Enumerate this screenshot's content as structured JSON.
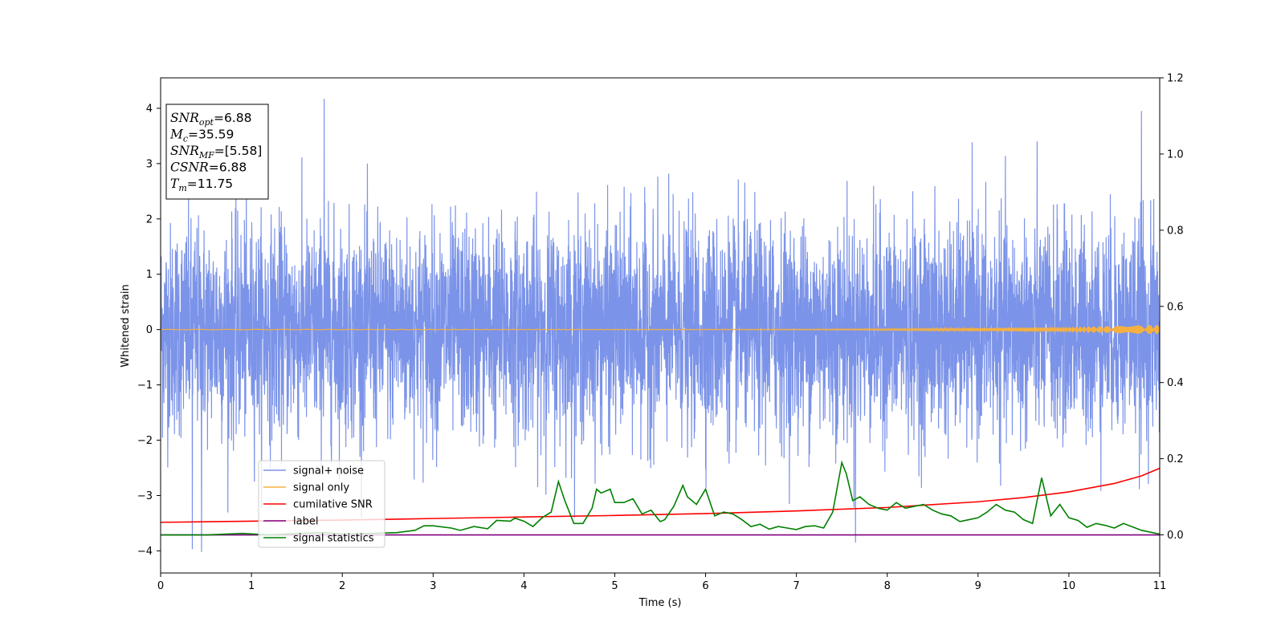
{
  "chart_data": {
    "type": "line",
    "xlabel": "Time (s)",
    "ylabel": "Whitened strain",
    "xlim": [
      0,
      11
    ],
    "ylim_left": [
      -4.4,
      4.55
    ],
    "ylim_right": [
      -0.1,
      1.2
    ],
    "x_ticks": [
      0,
      1,
      2,
      3,
      4,
      5,
      6,
      7,
      8,
      9,
      10,
      11
    ],
    "y_ticks_left": [
      -4,
      -3,
      -2,
      -1,
      0,
      1,
      2,
      3,
      4
    ],
    "y_ticks_right": [
      0.0,
      0.2,
      0.4,
      0.6,
      0.8,
      1.0,
      1.2
    ],
    "grid": false,
    "legend_position": "lower-left",
    "annotation_box": {
      "position": "top-left",
      "lines": [
        {
          "math": "SNR",
          "sub": "opt",
          "value": "=6.88"
        },
        {
          "math": "M",
          "sub": "c",
          "value": "=35.59"
        },
        {
          "math": "SNR",
          "sub": "MF",
          "value": "=[5.58]"
        },
        {
          "math": "CSNR",
          "sub": "",
          "value": "=6.88"
        },
        {
          "math": "T",
          "sub": "m",
          "value": "=11.75"
        }
      ]
    },
    "series": [
      {
        "name": "signal+ noise",
        "axis": "left",
        "color": "#7b93e8",
        "description_of_values": "noise band, roughly between -2.6 and 2.6 with spikes reaching about 4.2 and -4.0",
        "typical_range": [
          -2.6,
          2.6
        ],
        "peaks": [
          {
            "x": 1.8,
            "y": 4.17
          },
          {
            "x": 10.8,
            "y": 3.95
          },
          {
            "x": 0.45,
            "y": -4.02
          },
          {
            "x": 0.35,
            "y": -3.97
          },
          {
            "x": 7.65,
            "y": -3.85
          }
        ]
      },
      {
        "name": "signal only",
        "axis": "left",
        "color": "#f5b041",
        "description_of_values": "chirp near zero, amplitude growing to about 0.08 near t=11",
        "amplitude_end": 0.08
      },
      {
        "name": "cumilative SNR",
        "axis": "right",
        "color": "#ff0000",
        "x": [
          0,
          1,
          2,
          3,
          4,
          5,
          6,
          7,
          8,
          9,
          9.5,
          10,
          10.5,
          10.8,
          11
        ],
        "values": [
          0.033,
          0.036,
          0.039,
          0.043,
          0.047,
          0.051,
          0.056,
          0.063,
          0.072,
          0.087,
          0.098,
          0.113,
          0.135,
          0.155,
          0.175
        ]
      },
      {
        "name": "label",
        "axis": "right",
        "color": "#800080",
        "x": [
          0,
          11
        ],
        "values": [
          0.0,
          0.0
        ]
      },
      {
        "name": "signal statistics",
        "axis": "right",
        "color": "#008000",
        "x": [
          0,
          0.5,
          0.9,
          1.2,
          1.5,
          1.8,
          2.0,
          2.3,
          2.6,
          2.8,
          2.9,
          3.0,
          3.2,
          3.3,
          3.45,
          3.6,
          3.7,
          3.85,
          3.9,
          4.0,
          4.1,
          4.2,
          4.3,
          4.38,
          4.45,
          4.55,
          4.65,
          4.75,
          4.8,
          4.85,
          4.95,
          5.0,
          5.1,
          5.2,
          5.3,
          5.4,
          5.5,
          5.55,
          5.65,
          5.75,
          5.8,
          5.9,
          6.0,
          6.1,
          6.2,
          6.3,
          6.4,
          6.5,
          6.6,
          6.7,
          6.8,
          6.9,
          7.0,
          7.1,
          7.2,
          7.3,
          7.4,
          7.5,
          7.55,
          7.62,
          7.7,
          7.8,
          7.9,
          8.0,
          8.1,
          8.2,
          8.3,
          8.4,
          8.5,
          8.6,
          8.7,
          8.8,
          8.9,
          9.0,
          9.1,
          9.2,
          9.3,
          9.4,
          9.5,
          9.6,
          9.7,
          9.8,
          9.9,
          10.0,
          10.1,
          10.2,
          10.3,
          10.4,
          10.5,
          10.6,
          10.8,
          11.0
        ],
        "values": [
          0.0,
          0.0,
          0.004,
          0.0,
          0.004,
          0.006,
          0.002,
          0.004,
          0.006,
          0.012,
          0.024,
          0.024,
          0.018,
          0.012,
          0.022,
          0.016,
          0.038,
          0.036,
          0.044,
          0.036,
          0.022,
          0.045,
          0.06,
          0.14,
          0.09,
          0.03,
          0.03,
          0.07,
          0.12,
          0.11,
          0.12,
          0.085,
          0.085,
          0.095,
          0.055,
          0.065,
          0.035,
          0.04,
          0.075,
          0.13,
          0.1,
          0.08,
          0.12,
          0.05,
          0.06,
          0.055,
          0.04,
          0.022,
          0.028,
          0.015,
          0.022,
          0.018,
          0.014,
          0.022,
          0.024,
          0.018,
          0.06,
          0.19,
          0.16,
          0.09,
          0.1,
          0.08,
          0.07,
          0.065,
          0.085,
          0.07,
          0.075,
          0.08,
          0.065,
          0.055,
          0.05,
          0.035,
          0.04,
          0.045,
          0.06,
          0.08,
          0.065,
          0.06,
          0.04,
          0.03,
          0.15,
          0.05,
          0.08,
          0.045,
          0.038,
          0.02,
          0.03,
          0.025,
          0.018,
          0.03,
          0.012,
          0.002
        ]
      }
    ]
  }
}
